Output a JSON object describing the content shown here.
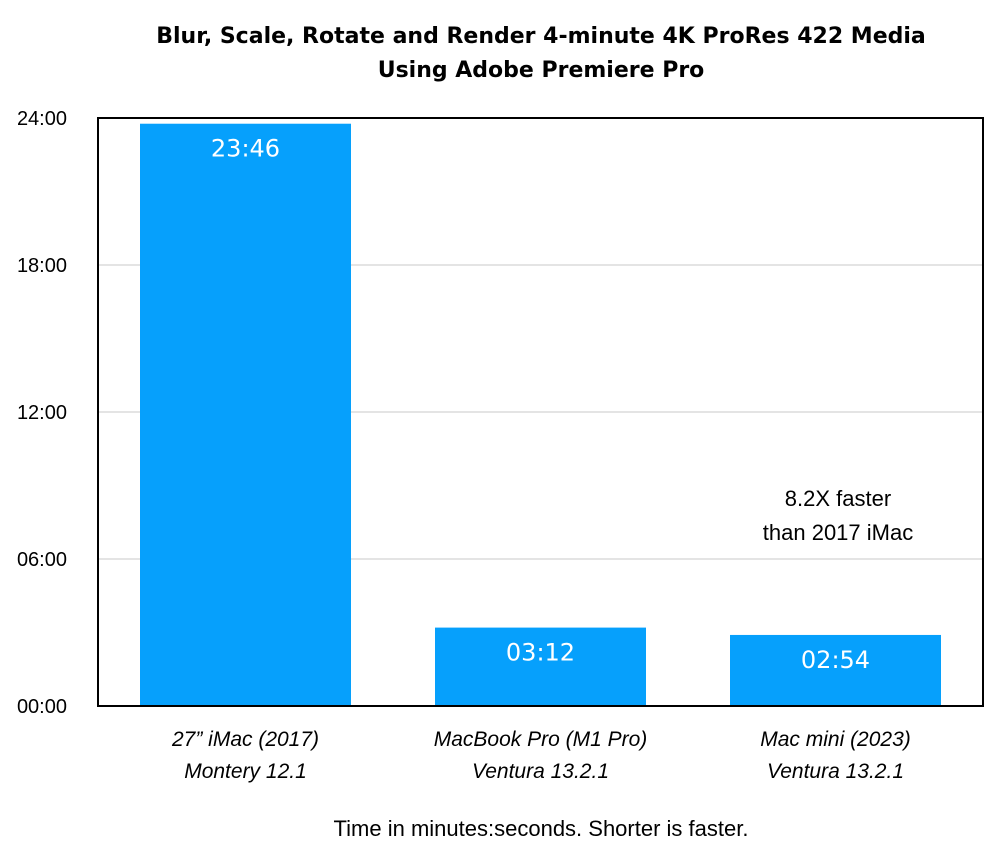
{
  "chart_data": {
    "type": "bar",
    "title_lines": [
      "Blur, Scale, Rotate and Render 4-minute 4K ProRes 422 Media",
      "Using Adobe Premiere Pro"
    ],
    "categories": [
      {
        "line1": "27” iMac (2017)",
        "line2": "Montery 12.1"
      },
      {
        "line1": "MacBook Pro (M1 Pro)",
        "line2": "Ventura 13.2.1"
      },
      {
        "line1": "Mac mini (2023)",
        "line2": "Ventura 13.2.1"
      }
    ],
    "values_minutes": [
      23.7667,
      3.2,
      2.9
    ],
    "bar_labels": [
      "23:46",
      "03:12",
      "02:54"
    ],
    "ylim_minutes": [
      0,
      24
    ],
    "yticks": [
      {
        "value": 0,
        "label": "00:00"
      },
      {
        "value": 6,
        "label": "06:00"
      },
      {
        "value": 12,
        "label": "12:00"
      },
      {
        "value": 18,
        "label": "18:00"
      },
      {
        "value": 24,
        "label": "24:00"
      }
    ],
    "grid": true,
    "bar_color": "#06A0FC",
    "grid_color": "#C8C8C8",
    "annotation_lines": [
      "8.2X faster",
      "than 2017 iMac"
    ],
    "footnote": "Time in minutes:seconds. Shorter is faster."
  }
}
